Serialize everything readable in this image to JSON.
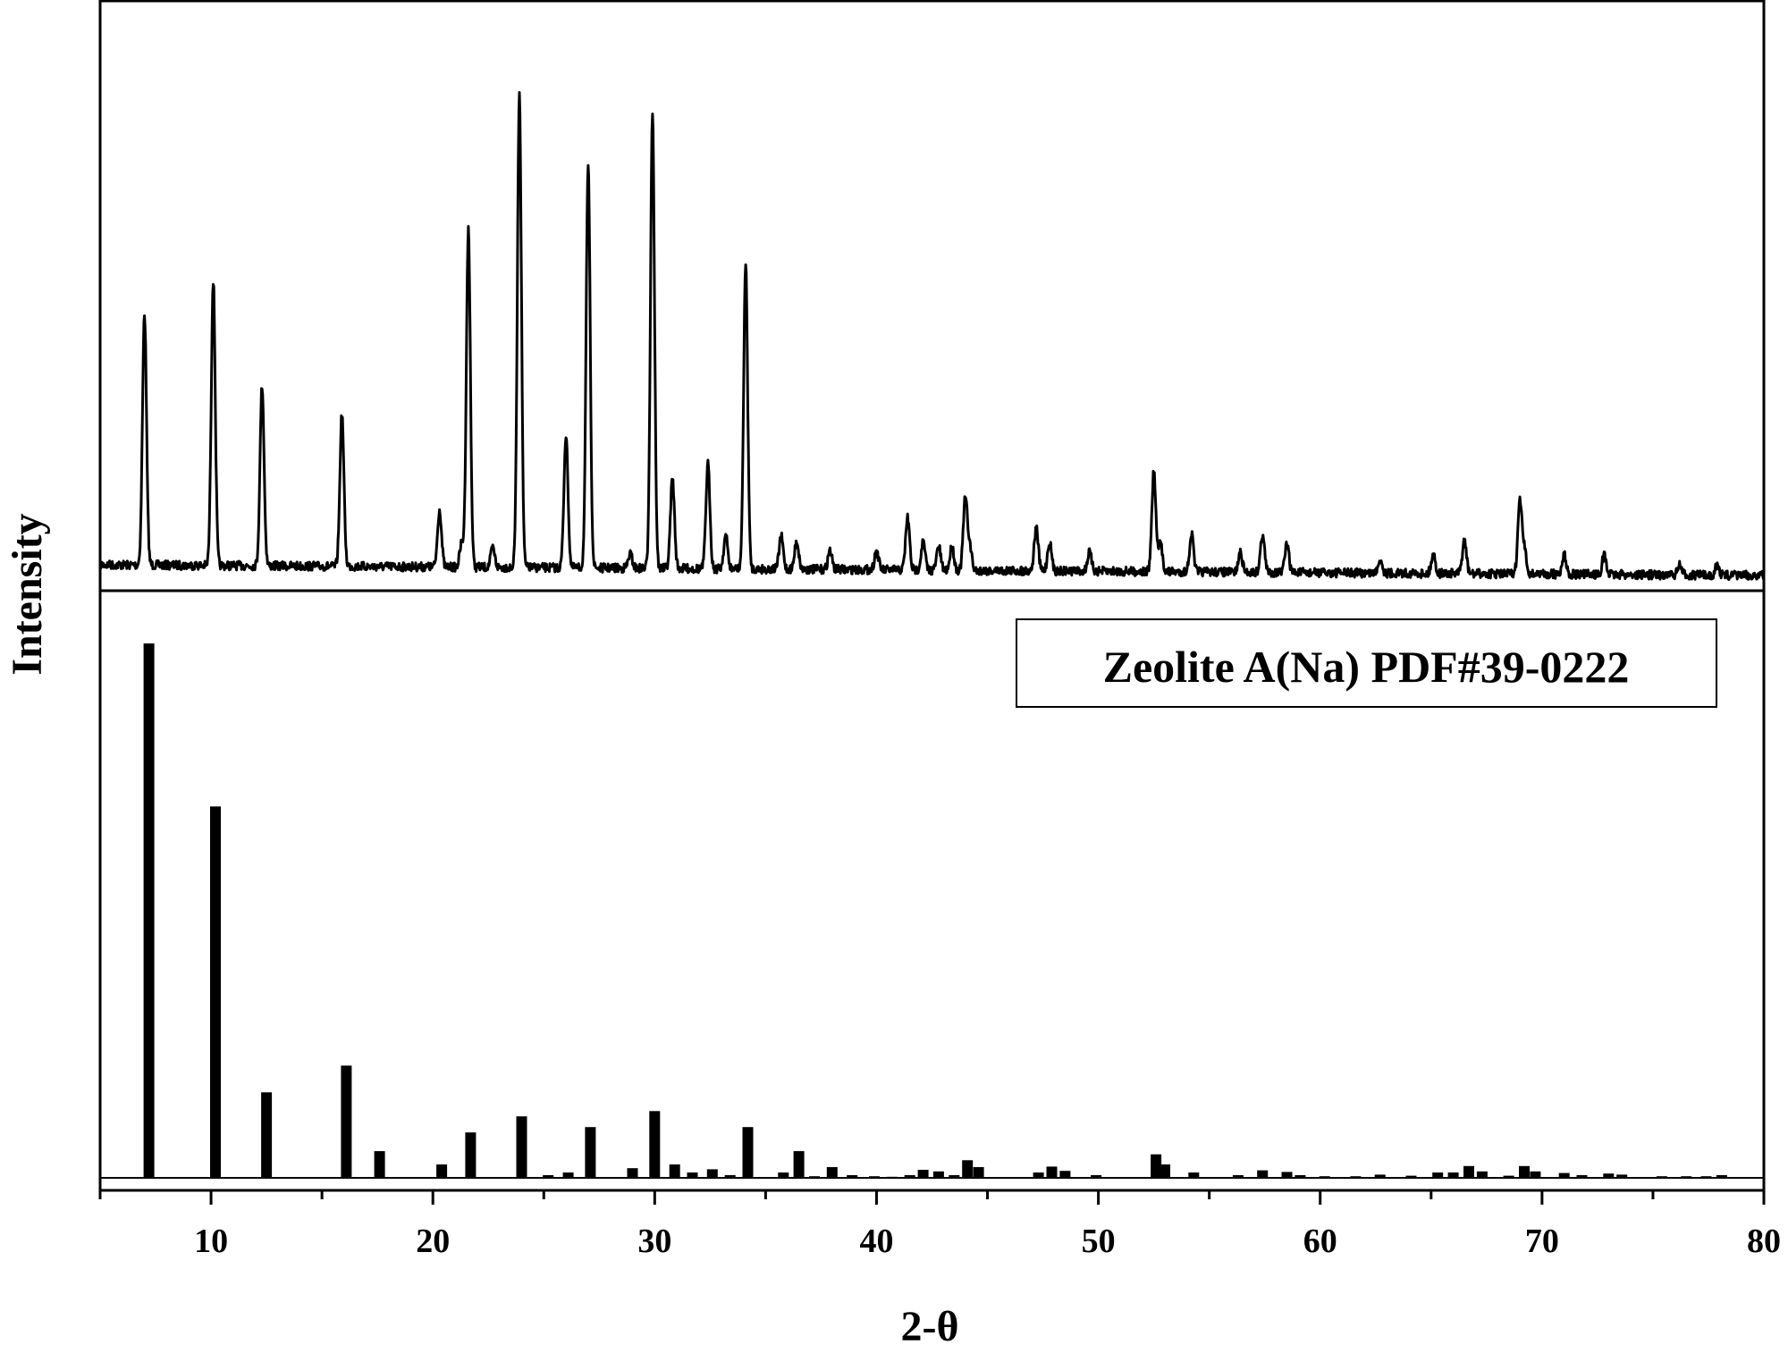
{
  "chart_data": [
    {
      "panel": "top",
      "type": "line",
      "description_source": "measured XRD pattern",
      "xlim": [
        5,
        80
      ],
      "peaks": [
        {
          "x": 7.0,
          "h": 0.53
        },
        {
          "x": 10.1,
          "h": 0.6
        },
        {
          "x": 12.3,
          "h": 0.38
        },
        {
          "x": 15.9,
          "h": 0.32
        },
        {
          "x": 20.3,
          "h": 0.12
        },
        {
          "x": 21.3,
          "h": 0.05
        },
        {
          "x": 21.6,
          "h": 0.71
        },
        {
          "x": 22.7,
          "h": 0.04
        },
        {
          "x": 23.9,
          "h": 1.0
        },
        {
          "x": 26.0,
          "h": 0.28
        },
        {
          "x": 27.0,
          "h": 0.85
        },
        {
          "x": 28.9,
          "h": 0.03
        },
        {
          "x": 29.9,
          "h": 0.96
        },
        {
          "x": 30.8,
          "h": 0.19
        },
        {
          "x": 32.4,
          "h": 0.22
        },
        {
          "x": 33.2,
          "h": 0.07
        },
        {
          "x": 34.1,
          "h": 0.64
        },
        {
          "x": 35.7,
          "h": 0.07
        },
        {
          "x": 36.4,
          "h": 0.06
        },
        {
          "x": 37.9,
          "h": 0.04
        },
        {
          "x": 40.0,
          "h": 0.04
        },
        {
          "x": 41.4,
          "h": 0.11
        },
        {
          "x": 42.1,
          "h": 0.06
        },
        {
          "x": 42.8,
          "h": 0.05
        },
        {
          "x": 43.4,
          "h": 0.05
        },
        {
          "x": 44.0,
          "h": 0.15
        },
        {
          "x": 44.2,
          "h": 0.05
        },
        {
          "x": 47.2,
          "h": 0.09
        },
        {
          "x": 47.8,
          "h": 0.06
        },
        {
          "x": 49.6,
          "h": 0.04
        },
        {
          "x": 52.5,
          "h": 0.21
        },
        {
          "x": 52.8,
          "h": 0.06
        },
        {
          "x": 54.2,
          "h": 0.08
        },
        {
          "x": 56.4,
          "h": 0.04
        },
        {
          "x": 57.4,
          "h": 0.08
        },
        {
          "x": 58.5,
          "h": 0.06
        },
        {
          "x": 62.7,
          "h": 0.03
        },
        {
          "x": 65.1,
          "h": 0.04
        },
        {
          "x": 66.5,
          "h": 0.07
        },
        {
          "x": 69.0,
          "h": 0.15
        },
        {
          "x": 69.2,
          "h": 0.05
        },
        {
          "x": 71.0,
          "h": 0.04
        },
        {
          "x": 72.8,
          "h": 0.04
        },
        {
          "x": 76.2,
          "h": 0.02
        },
        {
          "x": 77.9,
          "h": 0.02
        }
      ]
    },
    {
      "panel": "bottom",
      "type": "bar",
      "legend": "Zeolite A(Na) PDF#39-0222",
      "xlim": [
        5,
        80
      ],
      "x": [
        7.2,
        10.2,
        12.5,
        16.1,
        17.6,
        20.4,
        21.7,
        24.0,
        25.2,
        26.1,
        27.1,
        29.0,
        30.0,
        30.9,
        31.7,
        32.6,
        33.4,
        34.2,
        35.8,
        36.5,
        37.2,
        38.0,
        38.9,
        39.9,
        40.7,
        41.5,
        42.1,
        42.8,
        43.5,
        44.1,
        44.6,
        47.3,
        47.9,
        48.5,
        49.9,
        52.6,
        53.0,
        54.3,
        56.3,
        57.4,
        58.5,
        59.1,
        60.2,
        61.6,
        62.7,
        64.1,
        65.3,
        66.0,
        66.7,
        67.3,
        68.5,
        69.2,
        69.7,
        71.0,
        71.8,
        73.0,
        73.6,
        75.4,
        76.5,
        77.4,
        78.1
      ],
      "values": [
        100,
        69.5,
        16,
        21,
        5,
        2.5,
        8.5,
        11.5,
        0.5,
        1,
        9.5,
        1.8,
        12.5,
        2.5,
        1,
        1.6,
        0.5,
        9.5,
        1,
        5,
        0.3,
        2,
        0.5,
        0.3,
        0.2,
        0.5,
        1.5,
        1.2,
        0.5,
        3.3,
        2,
        1,
        2.1,
        1.3,
        0.5,
        4.4,
        2.5,
        1,
        0.5,
        1.4,
        1.1,
        0.5,
        0.3,
        0.3,
        0.6,
        0.4,
        1,
        1,
        2.2,
        1.2,
        0.4,
        2.2,
        1.2,
        0.9,
        0.5,
        0.8,
        0.6,
        0.3,
        0.3,
        0.3,
        0.5
      ]
    }
  ],
  "x_axis": {
    "label": "2-θ",
    "ticks": [
      {
        "v": 10,
        "t": "10"
      },
      {
        "v": 20,
        "t": "20"
      },
      {
        "v": 30,
        "t": "30"
      },
      {
        "v": 40,
        "t": "40"
      },
      {
        "v": 50,
        "t": "50"
      },
      {
        "v": 60,
        "t": "60"
      },
      {
        "v": 70,
        "t": "70"
      },
      {
        "v": 80,
        "t": "80"
      }
    ]
  },
  "y_axis": {
    "label": "Intensity"
  }
}
